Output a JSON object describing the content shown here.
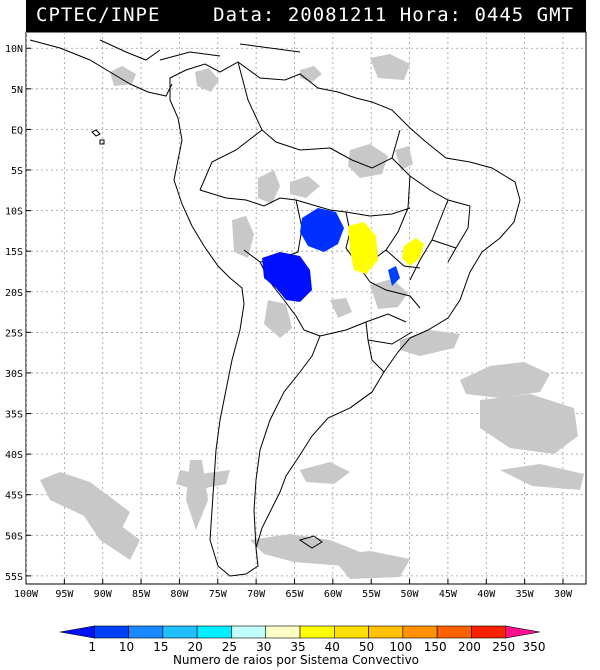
{
  "header": {
    "source": "CPTEC/INPE",
    "date_label": "Data:",
    "date_value": "20081211",
    "time_label": "Hora:",
    "time_value": "0445",
    "time_zone": "GMT"
  },
  "map": {
    "lat_labels": [
      "10N",
      "5N",
      "EQ",
      "5S",
      "10S",
      "15S",
      "20S",
      "25S",
      "30S",
      "35S",
      "40S",
      "45S",
      "50S",
      "55S"
    ],
    "lon_labels": [
      "100W",
      "95W",
      "90W",
      "85W",
      "80W",
      "75W",
      "70W",
      "65W",
      "60W",
      "55W",
      "50W",
      "45W",
      "40W",
      "35W",
      "30W"
    ],
    "lon_range": [
      -100,
      -27
    ],
    "lat_range": [
      -56,
      12
    ],
    "gridlines": true,
    "colors": {
      "land_outline": "#000000",
      "cloud": "#c8c8c8",
      "grid": "#9a9a9a"
    }
  },
  "legend": {
    "title": "Numero de raios por Sistema Convectivo",
    "labels": [
      "1",
      "10",
      "15",
      "20",
      "25",
      "30",
      "35",
      "40",
      "50",
      "100",
      "150",
      "200",
      "250",
      "350"
    ],
    "colors": [
      "#0010ff",
      "#0040ff",
      "#1a88ff",
      "#20c0ff",
      "#00eeff",
      "#c0ffff",
      "#ffffc8",
      "#ffff00",
      "#ffe000",
      "#ffc000",
      "#ff9000",
      "#ff6000",
      "#ff2000",
      "#ff1090"
    ]
  }
}
